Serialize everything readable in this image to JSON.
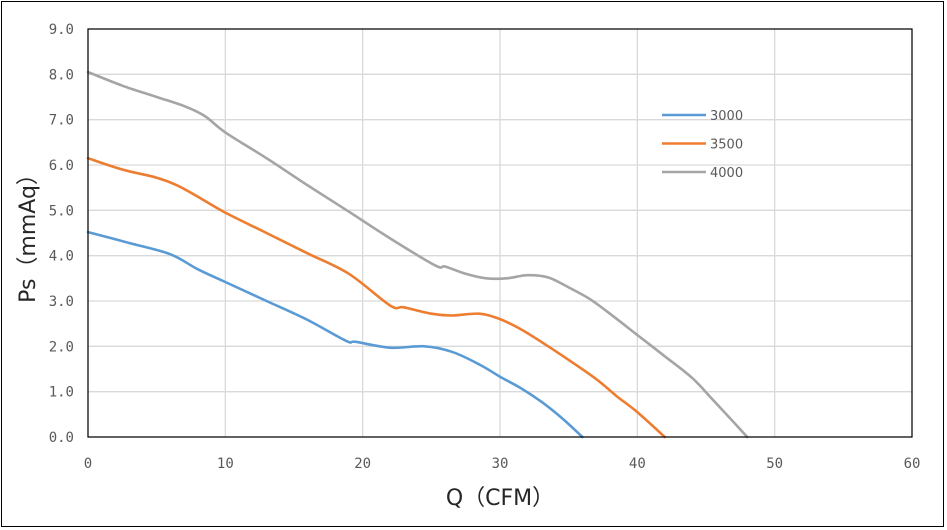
{
  "chart_data": {
    "type": "line",
    "title": "",
    "xlabel": "Q（CFM）",
    "ylabel": "Ps（mmAq）",
    "xlim": [
      0,
      60
    ],
    "ylim": [
      0,
      9
    ],
    "x_ticks": [
      0,
      10,
      20,
      30,
      40,
      50,
      60
    ],
    "x_tick_labels": [
      "0",
      "10",
      "20",
      "30",
      "40",
      "50",
      "60"
    ],
    "y_ticks": [
      0,
      1,
      2,
      3,
      4,
      5,
      6,
      7,
      8,
      9
    ],
    "y_tick_labels": [
      "0.0",
      "1.0",
      "2.0",
      "3.0",
      "4.0",
      "5.0",
      "6.0",
      "7.0",
      "8.0",
      "9.0"
    ],
    "grid": true,
    "legend_position": "right",
    "series": [
      {
        "name": "3000",
        "color": "#5B9BD5",
        "points": [
          [
            0,
            4.52
          ],
          [
            3,
            4.28
          ],
          [
            6,
            4.03
          ],
          [
            8,
            3.7
          ],
          [
            10,
            3.42
          ],
          [
            13,
            3.0
          ],
          [
            16,
            2.58
          ],
          [
            18.8,
            2.12
          ],
          [
            19.5,
            2.1
          ],
          [
            22,
            1.97
          ],
          [
            24.5,
            2.0
          ],
          [
            26.5,
            1.88
          ],
          [
            28.5,
            1.6
          ],
          [
            30,
            1.33
          ],
          [
            31.5,
            1.08
          ],
          [
            33,
            0.78
          ],
          [
            34.5,
            0.42
          ],
          [
            36,
            0.0
          ]
        ]
      },
      {
        "name": "3500",
        "color": "#ED7D31",
        "points": [
          [
            0,
            6.15
          ],
          [
            2.5,
            5.9
          ],
          [
            5,
            5.72
          ],
          [
            6.5,
            5.55
          ],
          [
            8,
            5.3
          ],
          [
            10,
            4.95
          ],
          [
            13,
            4.5
          ],
          [
            16,
            4.05
          ],
          [
            19,
            3.6
          ],
          [
            22,
            2.9
          ],
          [
            23,
            2.86
          ],
          [
            25,
            2.72
          ],
          [
            26.5,
            2.68
          ],
          [
            28.5,
            2.72
          ],
          [
            30,
            2.6
          ],
          [
            31.5,
            2.38
          ],
          [
            33,
            2.1
          ],
          [
            35,
            1.7
          ],
          [
            37,
            1.28
          ],
          [
            38.5,
            0.9
          ],
          [
            40,
            0.55
          ],
          [
            42,
            0.0
          ]
        ]
      },
      {
        "name": "4000",
        "color": "#A5A5A5",
        "points": [
          [
            0,
            8.05
          ],
          [
            2.5,
            7.75
          ],
          [
            5,
            7.5
          ],
          [
            7,
            7.3
          ],
          [
            8.5,
            7.08
          ],
          [
            10,
            6.72
          ],
          [
            13,
            6.15
          ],
          [
            16,
            5.55
          ],
          [
            19,
            4.97
          ],
          [
            22,
            4.38
          ],
          [
            25.3,
            3.78
          ],
          [
            26,
            3.76
          ],
          [
            27.5,
            3.6
          ],
          [
            29,
            3.5
          ],
          [
            30.5,
            3.5
          ],
          [
            32,
            3.57
          ],
          [
            33.5,
            3.52
          ],
          [
            35,
            3.3
          ],
          [
            36.5,
            3.05
          ],
          [
            38,
            2.72
          ],
          [
            40,
            2.25
          ],
          [
            42,
            1.78
          ],
          [
            44,
            1.3
          ],
          [
            45.5,
            0.82
          ],
          [
            47,
            0.33
          ],
          [
            48,
            0.0
          ]
        ]
      }
    ]
  }
}
